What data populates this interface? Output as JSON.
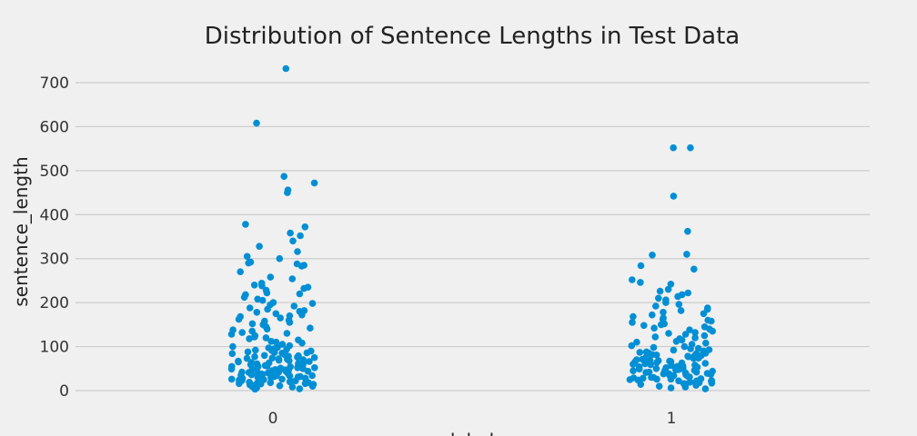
{
  "chart_data": {
    "type": "scatter",
    "title": "Distribution of Sentence Lengths in Test Data",
    "xlabel": "label",
    "ylabel": "sentence_length",
    "categories": [
      "0",
      "1"
    ],
    "y_ticks": [
      0,
      100,
      200,
      300,
      400,
      500,
      600,
      700
    ],
    "ylim": [
      -28,
      750
    ],
    "grid": "horizontal",
    "marker_color": "#008fd5",
    "background_color": "#f0f0f0",
    "series": [
      {
        "category": "0",
        "values": [
          732,
          608,
          487,
          472,
          456,
          450,
          378,
          372,
          358,
          352,
          340,
          328,
          316,
          305,
          300,
          292,
          290,
          288,
          285,
          283,
          270,
          258,
          254,
          244,
          240,
          238,
          235,
          232,
          228,
          222,
          220,
          218,
          212,
          208,
          205,
          200,
          198,
          195,
          192,
          188,
          185,
          182,
          180,
          178,
          175,
          172,
          170,
          168,
          165,
          162,
          160,
          158,
          155,
          152,
          150,
          148,
          145,
          142,
          140,
          138,
          135,
          132,
          130,
          128,
          125,
          122,
          120,
          118,
          115,
          112,
          110,
          108,
          105,
          102,
          100,
          98,
          97,
          95,
          94,
          92,
          91,
          90,
          88,
          87,
          86,
          85,
          84,
          82,
          81,
          80,
          79,
          78,
          77,
          76,
          75,
          74,
          73,
          72,
          71,
          70,
          69,
          68,
          67,
          66,
          65,
          64,
          63,
          62,
          61,
          60,
          59,
          58,
          57,
          56,
          55,
          55,
          54,
          53,
          52,
          52,
          51,
          50,
          50,
          49,
          48,
          48,
          47,
          46,
          46,
          45,
          44,
          44,
          43,
          42,
          42,
          41,
          40,
          40,
          39,
          38,
          38,
          37,
          36,
          36,
          35,
          34,
          34,
          33,
          32,
          32,
          31,
          30,
          30,
          29,
          28,
          28,
          27,
          26,
          26,
          25,
          24,
          24,
          23,
          22,
          22,
          21,
          20,
          20,
          19,
          18,
          18,
          17,
          16,
          16,
          15,
          14,
          13,
          12,
          11,
          10,
          9,
          8,
          6,
          4,
          3
        ]
      },
      {
        "category": "1",
        "values": [
          552,
          552,
          442,
          362,
          310,
          308,
          284,
          276,
          252,
          246,
          242,
          230,
          226,
          222,
          218,
          214,
          210,
          206,
          200,
          196,
          192,
          188,
          185,
          182,
          178,
          175,
          172,
          168,
          165,
          162,
          160,
          158,
          155,
          152,
          150,
          148,
          145,
          142,
          140,
          138,
          135,
          132,
          130,
          128,
          125,
          122,
          120,
          118,
          115,
          112,
          110,
          108,
          105,
          102,
          100,
          98,
          96,
          95,
          93,
          92,
          90,
          88,
          87,
          86,
          85,
          84,
          82,
          81,
          80,
          79,
          78,
          77,
          76,
          75,
          74,
          73,
          72,
          71,
          70,
          69,
          68,
          67,
          66,
          65,
          64,
          63,
          62,
          61,
          60,
          59,
          58,
          57,
          56,
          55,
          54,
          53,
          52,
          51,
          50,
          50,
          49,
          48,
          47,
          46,
          46,
          45,
          44,
          43,
          42,
          42,
          41,
          40,
          39,
          38,
          38,
          37,
          36,
          35,
          34,
          34,
          33,
          32,
          31,
          30,
          30,
          29,
          28,
          27,
          26,
          26,
          25,
          24,
          23,
          22,
          22,
          21,
          20,
          19,
          18,
          17,
          16,
          15,
          14,
          12,
          10,
          8,
          6,
          4
        ]
      }
    ]
  }
}
